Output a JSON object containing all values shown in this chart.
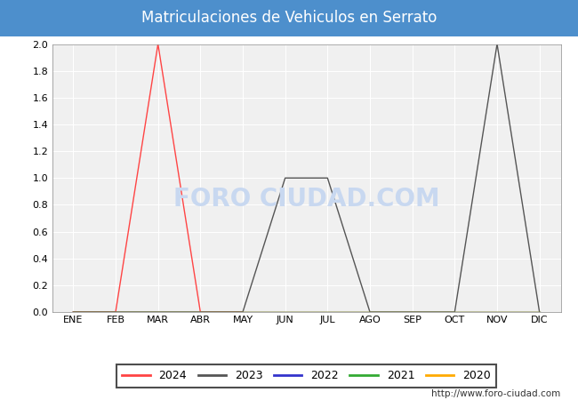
{
  "title": "Matriculaciones de Vehiculos en Serrato",
  "title_bg_color": "#4d8fcc",
  "title_text_color": "#FFFFFF",
  "plot_bg_color": "#F0F0F0",
  "fig_bg_color": "#FFFFFF",
  "grid_color": "#FFFFFF",
  "months": [
    "ENE",
    "FEB",
    "MAR",
    "ABR",
    "MAY",
    "JUN",
    "JUL",
    "AGO",
    "SEP",
    "OCT",
    "NOV",
    "DIC"
  ],
  "series": {
    "2024": {
      "color": "#FF4444",
      "data": [
        0,
        0,
        2,
        0,
        0,
        null,
        null,
        null,
        null,
        null,
        null,
        null
      ]
    },
    "2023": {
      "color": "#555555",
      "data": [
        0,
        0,
        0,
        0,
        0,
        1,
        1,
        0,
        0,
        0,
        2,
        0
      ]
    },
    "2022": {
      "color": "#3333CC",
      "data": [
        0,
        0,
        0,
        0,
        0,
        0,
        0,
        0,
        0,
        0,
        0,
        0
      ]
    },
    "2021": {
      "color": "#33AA33",
      "data": [
        0,
        0,
        0,
        0,
        0,
        0,
        0,
        0,
        0,
        0,
        0,
        0
      ]
    },
    "2020": {
      "color": "#FFAA00",
      "data": [
        0,
        0,
        0,
        0,
        0,
        0,
        0,
        0,
        0,
        0,
        0,
        0
      ]
    }
  },
  "ylim": [
    0,
    2.0
  ],
  "yticks": [
    0.0,
    0.2,
    0.4,
    0.6,
    0.8,
    1.0,
    1.2,
    1.4,
    1.6,
    1.8,
    2.0
  ],
  "legend_order": [
    "2024",
    "2023",
    "2022",
    "2021",
    "2020"
  ],
  "watermark": "FORO CIUDAD.COM",
  "watermark_color": "#C8D8F0",
  "url_text": "http://www.foro-ciudad.com",
  "figsize": [
    6.5,
    4.5
  ],
  "dpi": 100
}
